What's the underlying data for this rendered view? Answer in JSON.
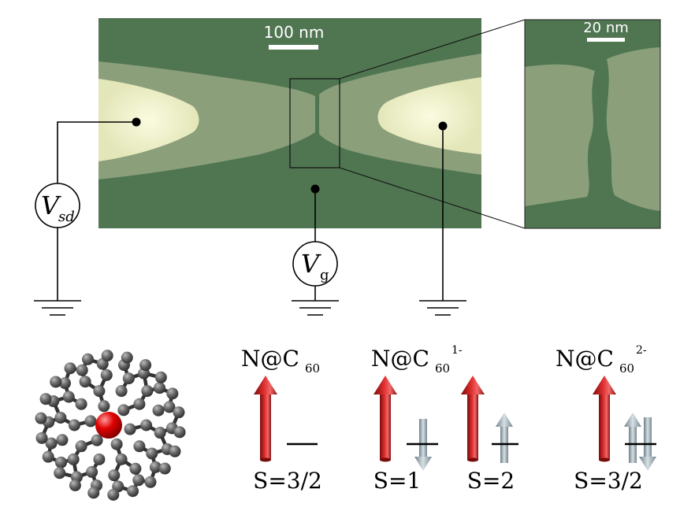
{
  "sem_image": {
    "scale_bar_label": "100 nm"
  },
  "zoom_image": {
    "scale_bar_label": "20 nm"
  },
  "circuit": {
    "vsd": {
      "symbol": "V",
      "subscript": "sd"
    },
    "vg": {
      "symbol": "V",
      "subscript": "g"
    }
  },
  "molecule": {
    "icon": "fullerene-with-nitrogen-atom-icon",
    "cage_color": "#555555",
    "atom_color": "#e00000"
  },
  "spin_states": [
    {
      "formula": "N@C",
      "subscript": "60",
      "superscript": "",
      "configs": [
        {
          "label": "S=3/2"
        }
      ]
    },
    {
      "formula": "N@C",
      "subscript": "60",
      "superscript": "1-",
      "configs": [
        {
          "label": "S=1"
        },
        {
          "label": "S=2"
        }
      ]
    },
    {
      "formula": "N@C",
      "subscript": "60",
      "superscript": "2-",
      "configs": [
        {
          "label": "S=3/2"
        }
      ]
    }
  ],
  "colors": {
    "substrate": "#4f7551",
    "electrode": "#8b9f7b",
    "electrode_tip": "#f0f0c6",
    "big_arrow": "#cc2020",
    "small_arrow": "#a8b8c0"
  }
}
